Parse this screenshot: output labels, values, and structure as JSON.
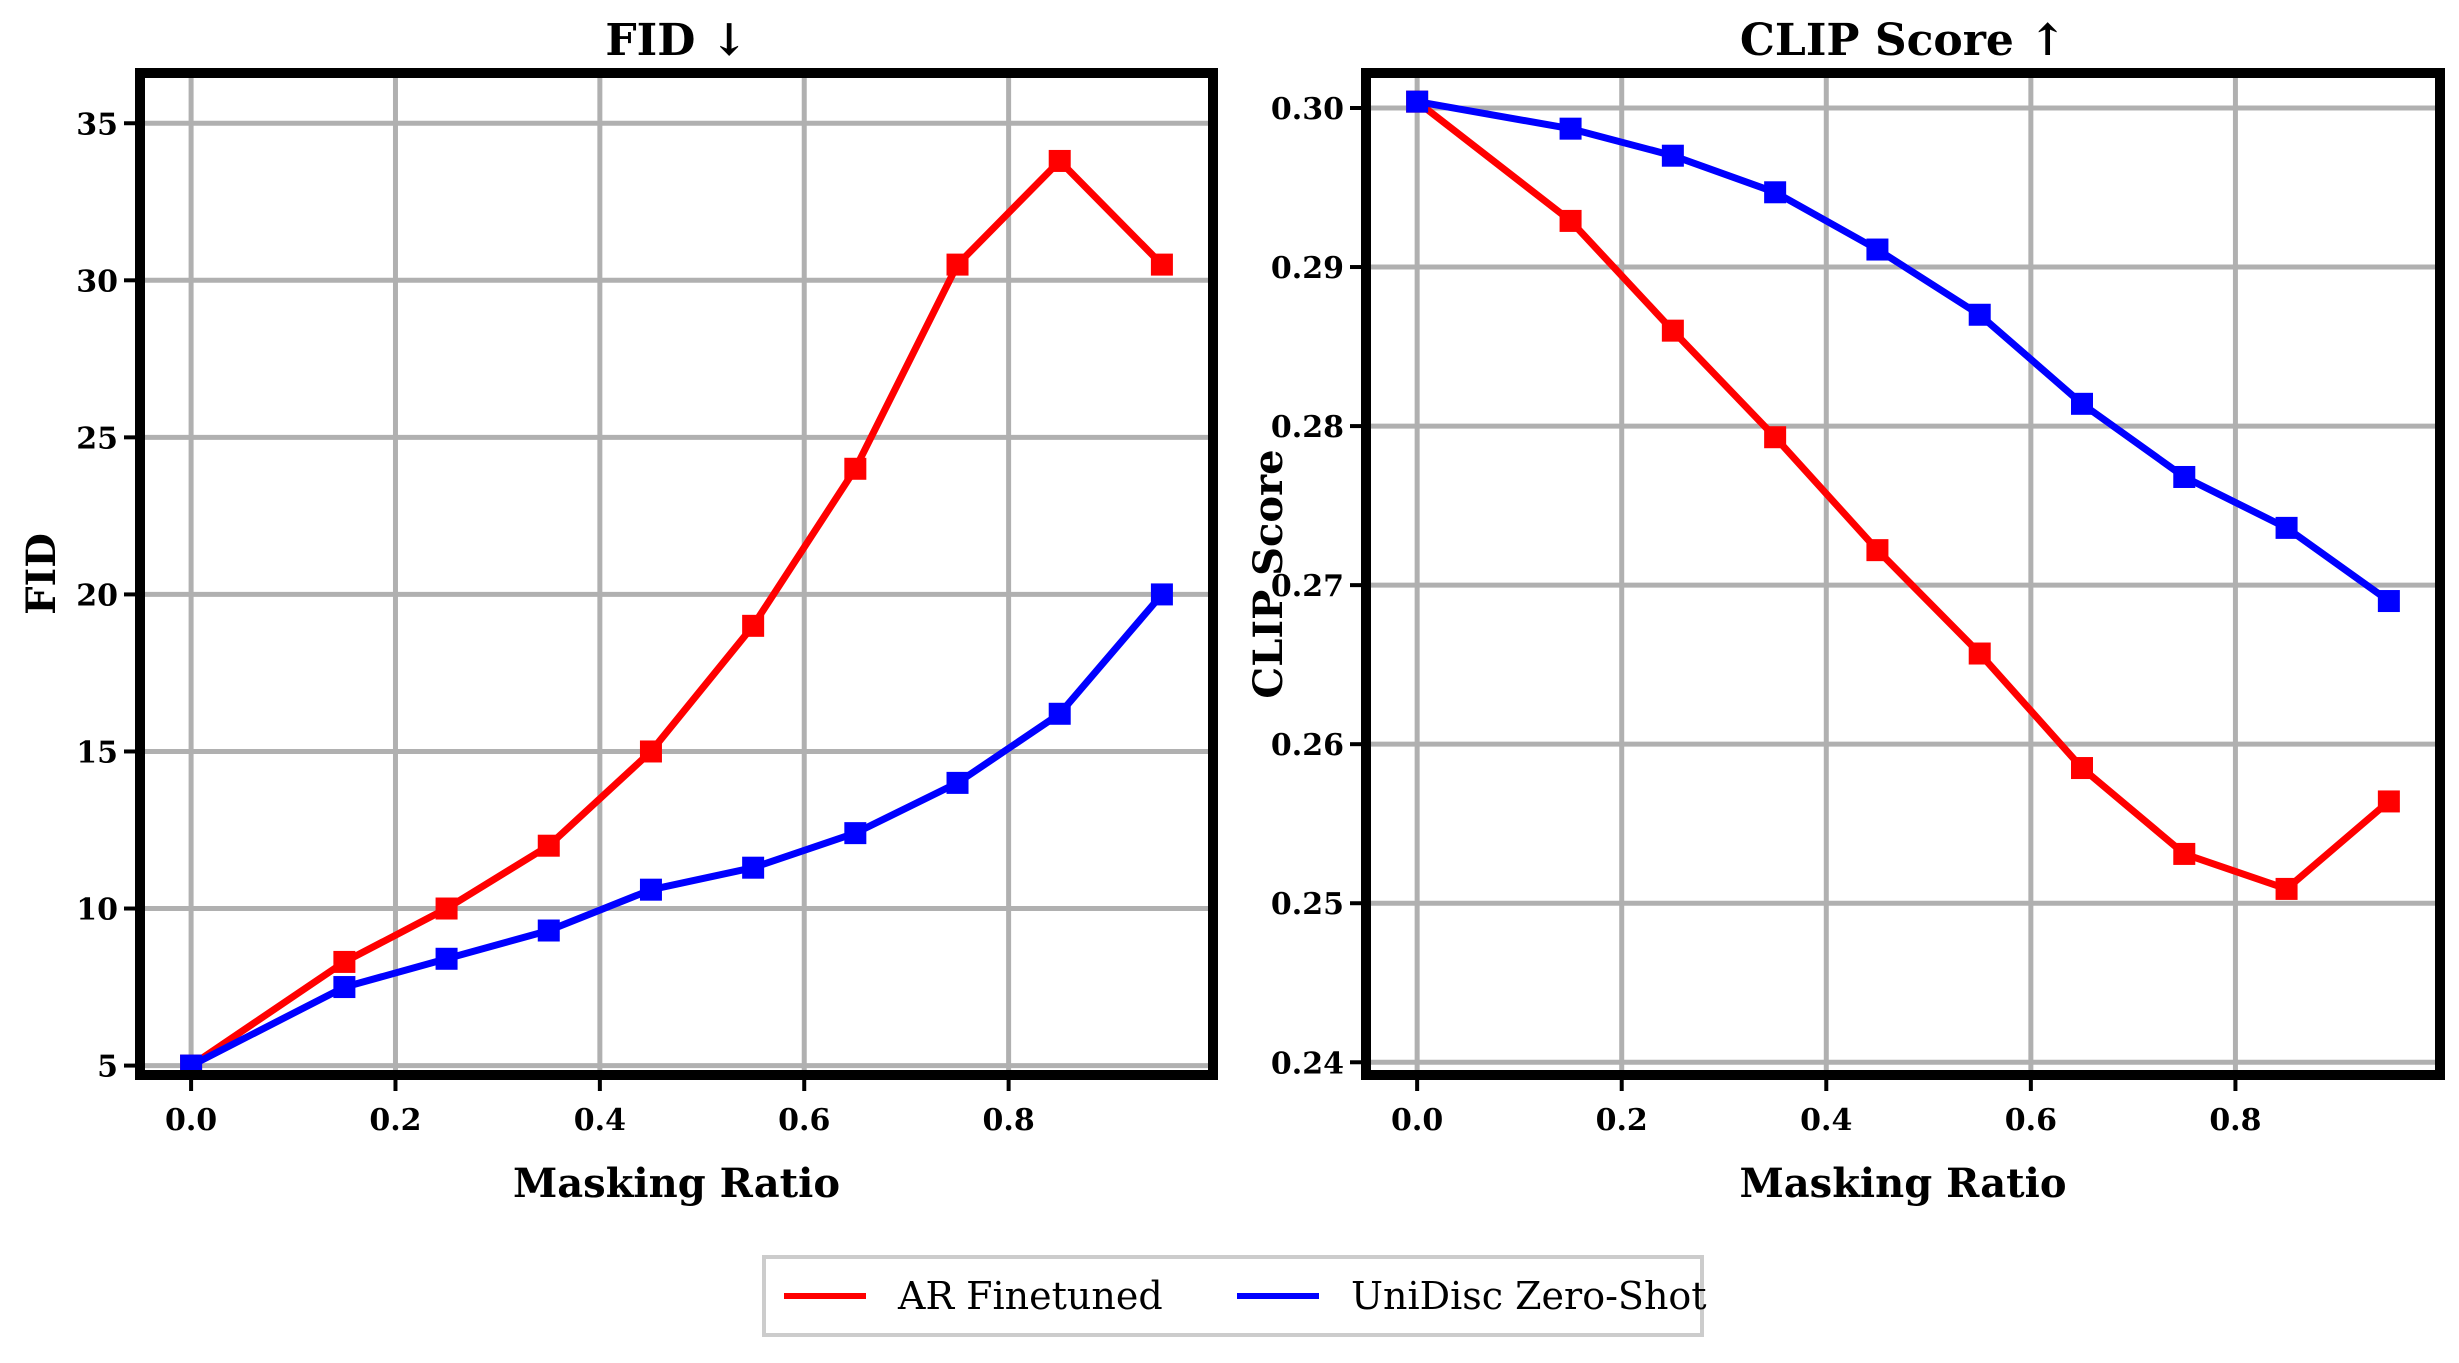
{
  "legend": {
    "entries": [
      {
        "label": "AR Finetuned",
        "color": "#ff0000"
      },
      {
        "label": "UniDisc Zero-Shot",
        "color": "#0000ff"
      }
    ],
    "placement": "bottom-center"
  },
  "chart_data": [
    {
      "type": "line",
      "title": "FID ↓",
      "xlabel": "Masking Ratio",
      "ylabel": "FID",
      "xlim": [
        -0.05,
        1.0
      ],
      "ylim": [
        4.7,
        36.6
      ],
      "xticks": [
        0.0,
        0.2,
        0.4,
        0.6,
        0.8
      ],
      "xtick_labels": [
        "0.0",
        "0.2",
        "0.4",
        "0.6",
        "0.8"
      ],
      "yticks": [
        5,
        10,
        15,
        20,
        25,
        30,
        35
      ],
      "ytick_labels": [
        "5",
        "10",
        "15",
        "20",
        "25",
        "30",
        "35"
      ],
      "grid": true,
      "x": [
        0.0,
        0.15,
        0.25,
        0.35,
        0.45,
        0.55,
        0.65,
        0.75,
        0.85,
        0.95
      ],
      "series": [
        {
          "name": "AR Finetuned",
          "color": "#ff0000",
          "marker": "square",
          "values": [
            5.0,
            8.3,
            10.0,
            12.0,
            15.0,
            19.0,
            24.0,
            30.5,
            33.8,
            30.5
          ]
        },
        {
          "name": "UniDisc Zero-Shot",
          "color": "#0000ff",
          "marker": "square",
          "values": [
            5.0,
            7.5,
            8.4,
            9.3,
            10.6,
            11.3,
            12.4,
            14.0,
            16.2,
            20.0
          ]
        }
      ]
    },
    {
      "type": "line",
      "title": "CLIP Score ↑",
      "xlabel": "Masking Ratio",
      "ylabel": "CLIP Score",
      "xlim": [
        -0.05,
        1.0
      ],
      "ylim": [
        0.2392,
        0.3022
      ],
      "xticks": [
        0.0,
        0.2,
        0.4,
        0.6,
        0.8
      ],
      "xtick_labels": [
        "0.0",
        "0.2",
        "0.4",
        "0.6",
        "0.8"
      ],
      "yticks": [
        0.24,
        0.25,
        0.26,
        0.27,
        0.28,
        0.29,
        0.3
      ],
      "ytick_labels": [
        "0.24",
        "0.25",
        "0.26",
        "0.27",
        "0.28",
        "0.29",
        "0.30"
      ],
      "grid": true,
      "x": [
        0.0,
        0.15,
        0.25,
        0.35,
        0.45,
        0.55,
        0.65,
        0.75,
        0.85,
        0.95
      ],
      "series": [
        {
          "name": "AR Finetuned",
          "color": "#ff0000",
          "marker": "square",
          "values": [
            0.3004,
            0.2929,
            0.286,
            0.2793,
            0.2722,
            0.2657,
            0.2585,
            0.2531,
            0.2509,
            0.2564
          ]
        },
        {
          "name": "UniDisc Zero-Shot",
          "color": "#0000ff",
          "marker": "square",
          "values": [
            0.3004,
            0.2987,
            0.297,
            0.2947,
            0.2911,
            0.287,
            0.2814,
            0.2768,
            0.2736,
            0.269
          ]
        }
      ]
    }
  ]
}
